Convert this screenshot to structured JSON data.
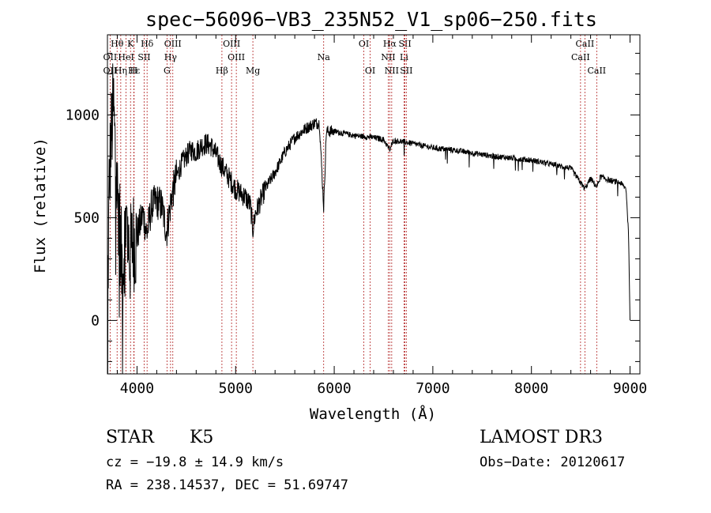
{
  "chart_data": {
    "type": "line",
    "title": "spec−56096−VB3_235N52_V1_sp06−250.fits",
    "xlabel": "Wavelength (Å)",
    "ylabel": "Flux (relative)",
    "xlim": [
      3700,
      9100
    ],
    "ylim": [
      -260,
      1390
    ],
    "xticks": [
      4000,
      5000,
      6000,
      7000,
      8000,
      9000
    ],
    "yticks": [
      0,
      500,
      1000
    ],
    "spectrum_anchors": [
      [
        3700,
        20
      ],
      [
        3720,
        700
      ],
      [
        3740,
        900
      ],
      [
        3760,
        1050
      ],
      [
        3780,
        800
      ],
      [
        3800,
        620
      ],
      [
        3820,
        520
      ],
      [
        3840,
        300
      ],
      [
        3860,
        250
      ],
      [
        3880,
        500
      ],
      [
        3900,
        450
      ],
      [
        3930,
        300
      ],
      [
        3960,
        400
      ],
      [
        3990,
        380
      ],
      [
        4020,
        450
      ],
      [
        4060,
        520
      ],
      [
        4100,
        420
      ],
      [
        4150,
        560
      ],
      [
        4200,
        580
      ],
      [
        4250,
        560
      ],
      [
        4300,
        430
      ],
      [
        4350,
        600
      ],
      [
        4400,
        700
      ],
      [
        4450,
        760
      ],
      [
        4500,
        800
      ],
      [
        4550,
        830
      ],
      [
        4600,
        820
      ],
      [
        4650,
        850
      ],
      [
        4700,
        860
      ],
      [
        4750,
        850
      ],
      [
        4800,
        810
      ],
      [
        4850,
        760
      ],
      [
        4900,
        720
      ],
      [
        4950,
        680
      ],
      [
        5000,
        640
      ],
      [
        5050,
        620
      ],
      [
        5100,
        600
      ],
      [
        5150,
        560
      ],
      [
        5175,
        440
      ],
      [
        5200,
        520
      ],
      [
        5300,
        640
      ],
      [
        5400,
        720
      ],
      [
        5500,
        820
      ],
      [
        5600,
        890
      ],
      [
        5700,
        930
      ],
      [
        5800,
        960
      ],
      [
        5850,
        960
      ],
      [
        5893,
        550
      ],
      [
        5920,
        920
      ],
      [
        6000,
        920
      ],
      [
        6100,
        910
      ],
      [
        6200,
        900
      ],
      [
        6300,
        895
      ],
      [
        6400,
        890
      ],
      [
        6500,
        880
      ],
      [
        6563,
        830
      ],
      [
        6600,
        875
      ],
      [
        6700,
        870
      ],
      [
        6800,
        860
      ],
      [
        7000,
        840
      ],
      [
        7200,
        830
      ],
      [
        7400,
        815
      ],
      [
        7600,
        800
      ],
      [
        7800,
        790
      ],
      [
        8000,
        780
      ],
      [
        8200,
        760
      ],
      [
        8400,
        740
      ],
      [
        8498,
        670
      ],
      [
        8542,
        640
      ],
      [
        8600,
        690
      ],
      [
        8662,
        650
      ],
      [
        8700,
        700
      ],
      [
        8800,
        680
      ],
      [
        8900,
        670
      ],
      [
        8960,
        640
      ],
      [
        8985,
        420
      ],
      [
        9000,
        0
      ]
    ],
    "spectral_lines": [
      {
        "label": "Hθ",
        "wavelength": 3798,
        "row": 0
      },
      {
        "label": "K",
        "wavelength": 3934,
        "row": 0
      },
      {
        "label": "Hδ",
        "wavelength": 4102,
        "row": 0
      },
      {
        "label": "OIII",
        "wavelength": 4363,
        "row": 0
      },
      {
        "label": "OIII",
        "wavelength": 4959,
        "row": 0
      },
      {
        "label": "OI",
        "wavelength": 6300,
        "row": 0
      },
      {
        "label": "Hα",
        "wavelength": 6563,
        "row": 0
      },
      {
        "label": "SII",
        "wavelength": 6717,
        "row": 0
      },
      {
        "label": "CaII",
        "wavelength": 8542,
        "row": 0
      },
      {
        "label": "OII",
        "wavelength": 3727,
        "row": 1
      },
      {
        "label": "HeI",
        "wavelength": 3889,
        "row": 1
      },
      {
        "label": "SII",
        "wavelength": 4072,
        "row": 1
      },
      {
        "label": "Hγ",
        "wavelength": 4340,
        "row": 1
      },
      {
        "label": "OIII",
        "wavelength": 5007,
        "row": 1
      },
      {
        "label": "Na",
        "wavelength": 5893,
        "row": 1
      },
      {
        "label": "NII",
        "wavelength": 6548,
        "row": 1
      },
      {
        "label": "Li",
        "wavelength": 6708,
        "row": 1
      },
      {
        "label": "CaII",
        "wavelength": 8498,
        "row": 1
      },
      {
        "label": "OII",
        "wavelength": 3727,
        "row": 2
      },
      {
        "label": "Hε",
        "wavelength": 3970,
        "row": 2
      },
      {
        "label": "H",
        "wavelength": 3968,
        "row": 2
      },
      {
        "label": "G",
        "wavelength": 4304,
        "row": 2
      },
      {
        "label": "Hβ",
        "wavelength": 4861,
        "row": 2
      },
      {
        "label": "Mg",
        "wavelength": 5175,
        "row": 2
      },
      {
        "label": "OI",
        "wavelength": 6364,
        "row": 2
      },
      {
        "label": "NII",
        "wavelength": 6583,
        "row": 2
      },
      {
        "label": "SII",
        "wavelength": 6731,
        "row": 2
      },
      {
        "label": "CaII",
        "wavelength": 8662,
        "row": 2
      },
      {
        "label": "Hη",
        "wavelength": 3835,
        "row": 2
      }
    ]
  },
  "info": {
    "object_class": "STAR",
    "subclass": "K5",
    "survey": "LAMOST DR3",
    "cz": "cz = −19.8 ± 14.9 km/s",
    "obs_date": "Obs−Date: 20120617",
    "radec": "RA = 238.14537, DEC =  51.69747"
  },
  "colors": {
    "line": "#000000",
    "marker": "#b22222"
  }
}
